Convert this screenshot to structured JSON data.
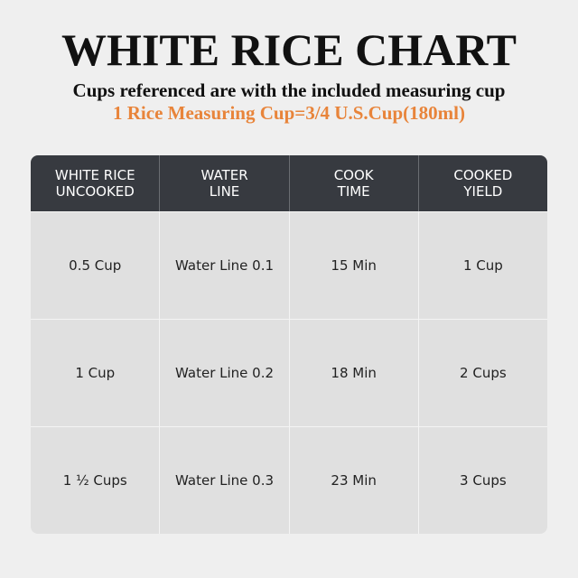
{
  "title": "WHITE RICE CHART",
  "subtitle": "Cups referenced are with the included measuring cup",
  "note": "1 Rice Measuring Cup=3/4 U.S.Cup(180ml)",
  "colors": {
    "accent": "#e8843a",
    "header_bg": "#373a40",
    "cell_bg": "#e0e0e0",
    "page_bg": "#efefef"
  },
  "table": {
    "headers": [
      [
        "WHITE RICE",
        "UNCOOKED"
      ],
      [
        "WATER",
        "LINE"
      ],
      [
        "COOK",
        "TIME"
      ],
      [
        "COOKED",
        "YIELD"
      ]
    ],
    "rows": [
      [
        "0.5 Cup",
        "Water Line 0.1",
        "15 Min",
        "1 Cup"
      ],
      [
        "1 Cup",
        "Water Line 0.2",
        "18 Min",
        "2 Cups"
      ],
      [
        "1 ½ Cups",
        "Water Line 0.3",
        "23 Min",
        "3 Cups"
      ]
    ]
  }
}
